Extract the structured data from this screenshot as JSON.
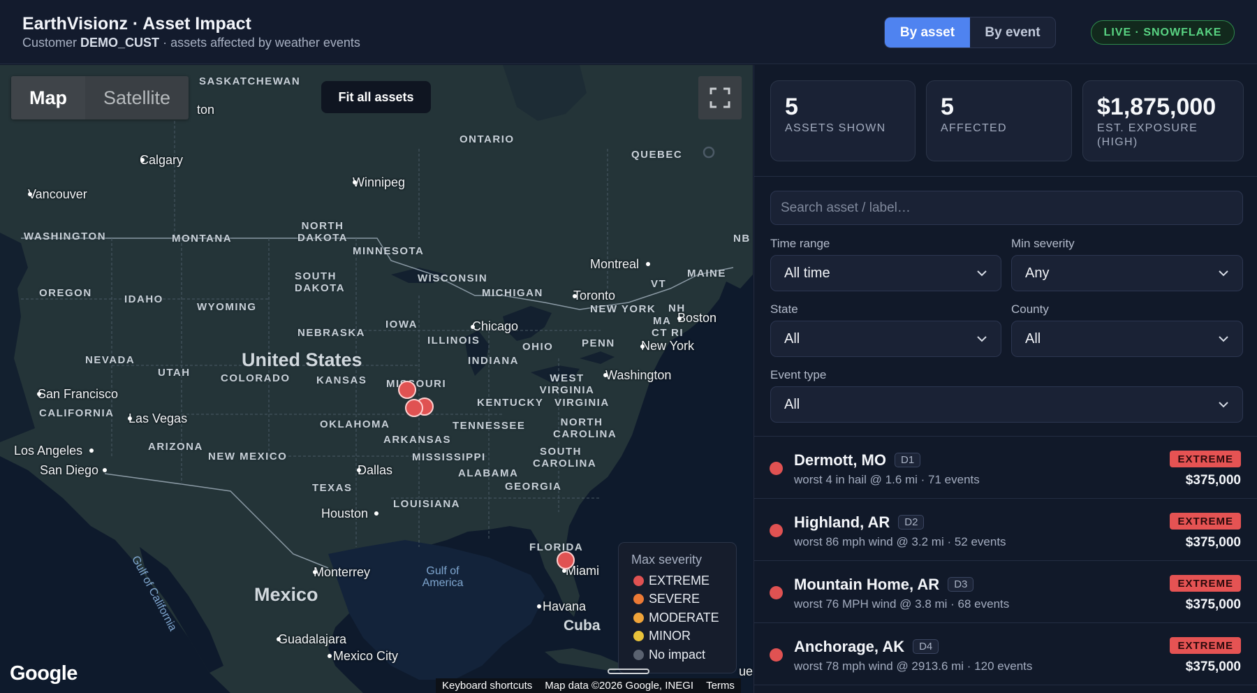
{
  "header": {
    "title": "EarthVisionz · Asset Impact",
    "subtitle_prefix": "Customer",
    "customer": "DEMO_CUST",
    "subtitle_suffix": "· assets affected by weather events",
    "tabs": [
      "By asset",
      "By event"
    ],
    "active_tab": "By asset",
    "live_badge": "LIVE · SNOWFLAKE"
  },
  "map": {
    "type_buttons": [
      "Map",
      "Satellite"
    ],
    "active_type": "Map",
    "fit_label": "Fit all assets",
    "regions": [
      "SASKATCHEWAN",
      "ONTARIO",
      "QUEBEC",
      "NORTH DAKOTA",
      "WASHINGTON",
      "MONTANA",
      "MINNESOTA",
      "SOUTH DAKOTA",
      "WISCONSIN",
      "MICHIGAN",
      "MAINE",
      "NB",
      "VT",
      "NEW YORK",
      "OREGON",
      "IDAHO",
      "WYOMING",
      "IOWA",
      "NEBRASKA",
      "CT",
      "RI",
      "MA",
      "NH",
      "ILLINOIS",
      "OHIO",
      "PENN",
      "NEVADA",
      "UTAH",
      "COLORADO",
      "KANSAS",
      "MISSOURI",
      "INDIANA",
      "WEST VIRGINIA",
      "KENTUCKY",
      "VIRGINIA",
      "CALIFORNIA",
      "OKLAHOMA",
      "TENNESSEE",
      "NORTH CAROLINA",
      "ARIZONA",
      "NEW MEXICO",
      "ARKANSAS",
      "MISSISSIPPI",
      "SOUTH CAROLINA",
      "ALABAMA",
      "GEORGIA",
      "TEXAS",
      "LOUISIANA",
      "FLORIDA"
    ],
    "cities": [
      "Calgary",
      "Winnipeg",
      "Vancouver",
      "Montreal",
      "Toronto",
      "Boston",
      "Chicago",
      "New York",
      "Washington",
      "San Francisco",
      "Las Vegas",
      "Los Angeles",
      "San Diego",
      "Dallas",
      "Houston",
      "Monterrey",
      "Miami",
      "Havana",
      "Guadalajara",
      "Mexico City",
      "ton",
      "ue"
    ],
    "countries": [
      "United States",
      "Mexico",
      "Cuba"
    ],
    "water": [
      "Gulf of California",
      "Gulf of America"
    ],
    "legend": {
      "title": "Max severity",
      "items": [
        {
          "label": "EXTREME",
          "color": "#e05252"
        },
        {
          "label": "SEVERE",
          "color": "#ec7a35"
        },
        {
          "label": "MODERATE",
          "color": "#f0a43a"
        },
        {
          "label": "MINOR",
          "color": "#e8c23a"
        },
        {
          "label": "No impact",
          "color": "#5a6270"
        }
      ]
    },
    "google": "Google",
    "attribution": [
      "Keyboard shortcuts",
      "Map data ©2026 Google, INEGI",
      "Terms"
    ]
  },
  "stats": [
    {
      "value": "5",
      "label": "ASSETS SHOWN"
    },
    {
      "value": "5",
      "label": "AFFECTED"
    },
    {
      "value": "$1,875,000",
      "label": "EST. EXPOSURE (HIGH)"
    }
  ],
  "filters": {
    "search_placeholder": "Search asset / label…",
    "time_range_label": "Time range",
    "time_range_value": "All time",
    "min_severity_label": "Min severity",
    "min_severity_value": "Any",
    "state_label": "State",
    "state_value": "All",
    "county_label": "County",
    "county_value": "All",
    "event_type_label": "Event type",
    "event_type_value": "All"
  },
  "assets": [
    {
      "name": "Dermott, MO",
      "tag": "D1",
      "detail": "worst 4 in hail @ 1.6 mi · 71 events",
      "severity": "EXTREME",
      "amount": "$375,000"
    },
    {
      "name": "Highland, AR",
      "tag": "D2",
      "detail": "worst 86 mph wind @ 3.2 mi · 52 events",
      "severity": "EXTREME",
      "amount": "$375,000"
    },
    {
      "name": "Mountain Home, AR",
      "tag": "D3",
      "detail": "worst 76 MPH wind @ 3.8 mi · 68 events",
      "severity": "EXTREME",
      "amount": "$375,000"
    },
    {
      "name": "Anchorage, AK",
      "tag": "D4",
      "detail": "worst 78 mph wind @ 2913.6 mi · 120 events",
      "severity": "EXTREME",
      "amount": "$375,000"
    }
  ],
  "colors": {
    "accent": "#4f83f0",
    "extreme": "#e05252",
    "live": "#59d483"
  }
}
